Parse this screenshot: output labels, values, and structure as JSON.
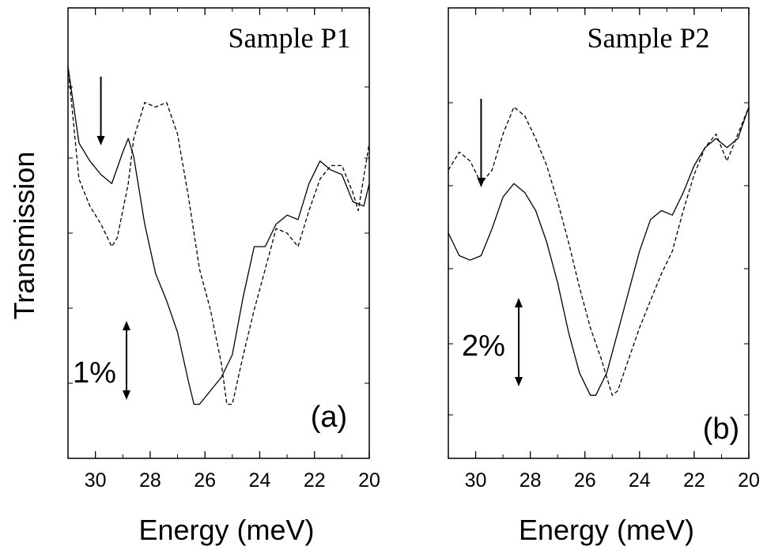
{
  "ylabel": "Transmission",
  "chart_data": [
    {
      "type": "line",
      "panel": "(a)",
      "title": "Sample P1",
      "xlabel": "Energy (meV)",
      "ylabel": "Transmission",
      "xlim": [
        31,
        20
      ],
      "ylim": [
        0,
        100
      ],
      "x_ticks": [
        "30",
        "28",
        "26",
        "24",
        "22",
        "20"
      ],
      "scale_bar": "1%",
      "arrow_at_x": 29.8,
      "series": [
        {
          "style": "solid",
          "points": [
            [
              31.0,
              87
            ],
            [
              30.6,
              70
            ],
            [
              30.2,
              66
            ],
            [
              29.8,
              63
            ],
            [
              29.4,
              61
            ],
            [
              29.0,
              68
            ],
            [
              28.8,
              71
            ],
            [
              28.6,
              67
            ],
            [
              28.2,
              52
            ],
            [
              27.8,
              41
            ],
            [
              27.4,
              35
            ],
            [
              27.0,
              28
            ],
            [
              26.6,
              17
            ],
            [
              26.4,
              12
            ],
            [
              26.2,
              12
            ],
            [
              25.8,
              15
            ],
            [
              25.4,
              18
            ],
            [
              25.0,
              23
            ],
            [
              24.6,
              36
            ],
            [
              24.2,
              47
            ],
            [
              23.8,
              47
            ],
            [
              23.4,
              52
            ],
            [
              23.0,
              54
            ],
            [
              22.6,
              53
            ],
            [
              22.2,
              61
            ],
            [
              21.8,
              66
            ],
            [
              21.4,
              64
            ],
            [
              21.0,
              63
            ],
            [
              20.6,
              57
            ],
            [
              20.2,
              56
            ],
            [
              20.0,
              61
            ]
          ]
        },
        {
          "style": "dashed",
          "points": [
            [
              31.0,
              87
            ],
            [
              30.6,
              62
            ],
            [
              30.2,
              56
            ],
            [
              29.8,
              52
            ],
            [
              29.4,
              47
            ],
            [
              29.2,
              49
            ],
            [
              28.8,
              61
            ],
            [
              28.6,
              71
            ],
            [
              28.2,
              79
            ],
            [
              27.8,
              78
            ],
            [
              27.4,
              79
            ],
            [
              27.0,
              72
            ],
            [
              26.6,
              58
            ],
            [
              26.2,
              42
            ],
            [
              25.8,
              33
            ],
            [
              25.4,
              21
            ],
            [
              25.2,
              12
            ],
            [
              25.0,
              12
            ],
            [
              24.6,
              23
            ],
            [
              24.2,
              33
            ],
            [
              23.8,
              42
            ],
            [
              23.4,
              51
            ],
            [
              23.0,
              50
            ],
            [
              22.6,
              47
            ],
            [
              22.2,
              55
            ],
            [
              21.8,
              62
            ],
            [
              21.4,
              65
            ],
            [
              21.0,
              65
            ],
            [
              20.6,
              59
            ],
            [
              20.4,
              55
            ],
            [
              20.0,
              70
            ]
          ]
        }
      ]
    },
    {
      "type": "line",
      "panel": "(b)",
      "title": "Sample P2",
      "xlabel": "Energy (meV)",
      "ylabel": "Transmission",
      "xlim": [
        31,
        20
      ],
      "ylim": [
        0,
        100
      ],
      "x_ticks": [
        "30",
        "28",
        "26",
        "24",
        "22",
        "20"
      ],
      "scale_bar": "2%",
      "arrow_at_x": 29.8,
      "series": [
        {
          "style": "solid",
          "points": [
            [
              31.0,
              50
            ],
            [
              30.6,
              45
            ],
            [
              30.2,
              44
            ],
            [
              29.8,
              45
            ],
            [
              29.4,
              51
            ],
            [
              29.0,
              58
            ],
            [
              28.6,
              61
            ],
            [
              28.2,
              59
            ],
            [
              27.8,
              55
            ],
            [
              27.4,
              48
            ],
            [
              27.0,
              39
            ],
            [
              26.6,
              28
            ],
            [
              26.2,
              19
            ],
            [
              25.8,
              14
            ],
            [
              25.6,
              14
            ],
            [
              25.2,
              19
            ],
            [
              24.8,
              28
            ],
            [
              24.4,
              37
            ],
            [
              24.0,
              46
            ],
            [
              23.6,
              53
            ],
            [
              23.2,
              55
            ],
            [
              22.8,
              54
            ],
            [
              22.4,
              59
            ],
            [
              22.0,
              65
            ],
            [
              21.6,
              69
            ],
            [
              21.2,
              71
            ],
            [
              20.8,
              69
            ],
            [
              20.4,
              71
            ],
            [
              20.0,
              78
            ]
          ]
        },
        {
          "style": "dashed",
          "points": [
            [
              31.0,
              64
            ],
            [
              30.6,
              68
            ],
            [
              30.2,
              66
            ],
            [
              29.8,
              61
            ],
            [
              29.4,
              64
            ],
            [
              29.0,
              72
            ],
            [
              28.6,
              78
            ],
            [
              28.2,
              76
            ],
            [
              27.8,
              71
            ],
            [
              27.4,
              65
            ],
            [
              27.0,
              57
            ],
            [
              26.6,
              48
            ],
            [
              26.2,
              38
            ],
            [
              25.8,
              29
            ],
            [
              25.4,
              22
            ],
            [
              25.0,
              14
            ],
            [
              24.8,
              15
            ],
            [
              24.4,
              22
            ],
            [
              24.0,
              29
            ],
            [
              23.6,
              35
            ],
            [
              23.2,
              41
            ],
            [
              22.8,
              46
            ],
            [
              22.4,
              55
            ],
            [
              22.0,
              63
            ],
            [
              21.6,
              69
            ],
            [
              21.2,
              72
            ],
            [
              20.8,
              66
            ],
            [
              20.4,
              72
            ],
            [
              20.0,
              78
            ]
          ]
        }
      ]
    }
  ]
}
